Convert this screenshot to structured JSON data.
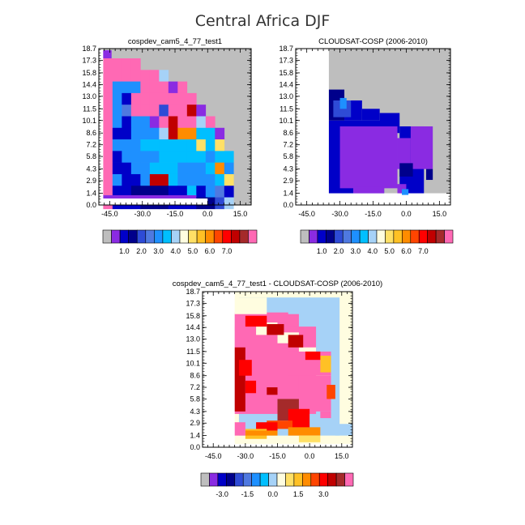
{
  "figure": {
    "title": "Central Africa DJF"
  },
  "colors": {
    "missing": "#bebebe",
    "panel_bg": "#ffffff"
  },
  "chart_data": [
    {
      "type": "heatmap",
      "title": "cospdev_cam5_4_77_test1",
      "x_ticks": [
        "-45.0",
        "-30.0",
        "-15.0",
        "0.0",
        "15.0"
      ],
      "x_tick_values": [
        -45,
        -30,
        -15,
        0,
        15
      ],
      "y_ticks": [
        "0.0",
        "1.4",
        "2.9",
        "4.3",
        "5.8",
        "7.2",
        "8.6",
        "10.1",
        "11.5",
        "13.0",
        "14.4",
        "15.8",
        "17.3",
        "18.7"
      ],
      "xlim": [
        -50,
        20
      ],
      "ylim": [
        0,
        18.7
      ],
      "colorbar": {
        "colors": [
          "#bebebe",
          "#8a2be2",
          "#0000c8",
          "#00008b",
          "#2e4bd6",
          "#4f79e0",
          "#1e90ff",
          "#00bfff",
          "#a6d2f7",
          "#fffde0",
          "#ffe066",
          "#ffc125",
          "#ff8c00",
          "#ff4500",
          "#ff0000",
          "#c00000",
          "#a52a2a",
          "#ff69b4"
        ],
        "labels": [
          "1.0",
          "2.0",
          "3.0",
          "4.0",
          "5.0",
          "6.0",
          "7.0"
        ]
      },
      "grid_region": {
        "rows": 13,
        "cols": 12,
        "col0_index": 0
      },
      "rows": [
        "PPPP..........",
        "PPPPPPA.......",
        "PSSSPPPGP.....",
        "PSBPPPPPPP....",
        "PSMPPPNPPRG...",
        "PSBSSGPRPPAP..",
        "PBBSSSLRFFOWG.",
        "PSSSWWWOOOYWY.",
        "PBSSSSWWWWWSWO",
        "PBBSSOOOSSSWFS",
        "PSBBSRRWSSSSWY",
        "PBBDDDDBBOBSMB",
        "PBBBDDDBBBDDNA"
      ]
    },
    {
      "type": "heatmap",
      "title": "CLOUDSAT-COSP (2006-2010)",
      "x_ticks": [
        "-45.0",
        "-30.0",
        "-15.0",
        "0.0",
        "15.0"
      ],
      "x_tick_values": [
        -45,
        -30,
        -15,
        0,
        15
      ],
      "y_ticks": [
        "0.0",
        "1.4",
        "2.9",
        "4.3",
        "5.8",
        "7.2",
        "8.6",
        "10.1",
        "11.5",
        "13.0",
        "14.4",
        "15.8",
        "17.3",
        "18.7"
      ],
      "xlim": [
        -50,
        20
      ],
      "ylim": [
        0,
        18.7
      ],
      "colorbar": {
        "colors": [
          "#bebebe",
          "#8a2be2",
          "#0000c8",
          "#00008b",
          "#2e4bd6",
          "#4f79e0",
          "#1e90ff",
          "#00bfff",
          "#a6d2f7",
          "#fffde0",
          "#ffe066",
          "#ffc125",
          "#ff8c00",
          "#ff4500",
          "#ff0000",
          "#c00000",
          "#a52a2a",
          "#ff69b4"
        ],
        "labels": [
          "1.0",
          "2.0",
          "3.0",
          "4.0",
          "5.0",
          "6.0",
          "7.0"
        ]
      }
    },
    {
      "type": "heatmap",
      "title": "cospdev_cam5_4_77_test1 - CLOUDSAT-COSP (2006-2010)",
      "x_ticks": [
        "-45.0",
        "-30.0",
        "-15.0",
        "0.0",
        "15.0"
      ],
      "x_tick_values": [
        -45,
        -30,
        -15,
        0,
        15
      ],
      "y_ticks": [
        "0.0",
        "1.4",
        "2.9",
        "4.3",
        "5.8",
        "7.2",
        "8.6",
        "10.1",
        "11.5",
        "13.0",
        "14.4",
        "15.8",
        "17.3",
        "18.7"
      ],
      "xlim": [
        -50,
        20
      ],
      "ylim": [
        0,
        18.7
      ],
      "colorbar": {
        "colors": [
          "#bebebe",
          "#8a2be2",
          "#0000c8",
          "#00008b",
          "#2e4bd6",
          "#4f79e0",
          "#1e90ff",
          "#00bfff",
          "#a6d2f7",
          "#fffde0",
          "#ffe066",
          "#ffc125",
          "#ff8c00",
          "#ff4500",
          "#ff0000",
          "#c00000",
          "#a52a2a",
          "#ff69b4"
        ],
        "labels": [
          "-3.0",
          "-1.5",
          "0.0",
          "1.5",
          "3.0"
        ]
      }
    }
  ]
}
